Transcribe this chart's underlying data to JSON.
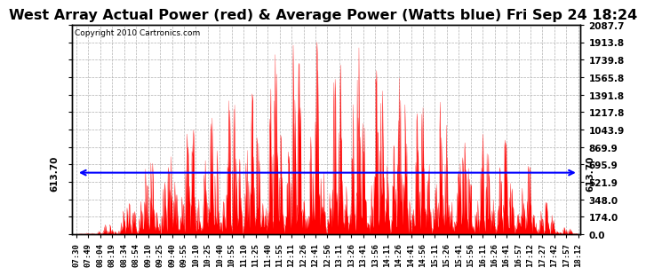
{
  "title": "West Array Actual Power (red) & Average Power (Watts blue) Fri Sep 24 18:24",
  "avg_power": 613.7,
  "ymax": 2087.7,
  "ymin": 0.0,
  "yticks": [
    0.0,
    174.0,
    348.0,
    521.9,
    695.9,
    869.9,
    1043.9,
    1217.8,
    1391.8,
    1565.8,
    1739.8,
    1913.8,
    2087.7
  ],
  "copyright": "Copyright 2010 Cartronics.com",
  "bar_color": "#ff0000",
  "avg_line_color": "#0000ff",
  "bg_color": "#ffffff",
  "grid_color": "#b0b0b0",
  "title_fontsize": 11.5,
  "copyright_fontsize": 6.5,
  "ytick_fontsize": 7.5,
  "xtick_fontsize": 6.5,
  "xtick_labels": [
    "07:30",
    "07:49",
    "08:04",
    "08:19",
    "08:34",
    "08:54",
    "09:10",
    "09:25",
    "09:40",
    "09:55",
    "10:10",
    "10:25",
    "10:40",
    "10:55",
    "11:10",
    "11:25",
    "11:40",
    "11:55",
    "12:11",
    "12:26",
    "12:41",
    "12:56",
    "13:11",
    "13:26",
    "13:41",
    "13:56",
    "14:11",
    "14:26",
    "14:41",
    "14:56",
    "15:11",
    "15:26",
    "15:41",
    "15:56",
    "16:11",
    "16:26",
    "16:41",
    "16:57",
    "17:12",
    "17:27",
    "17:42",
    "17:57",
    "18:12"
  ]
}
